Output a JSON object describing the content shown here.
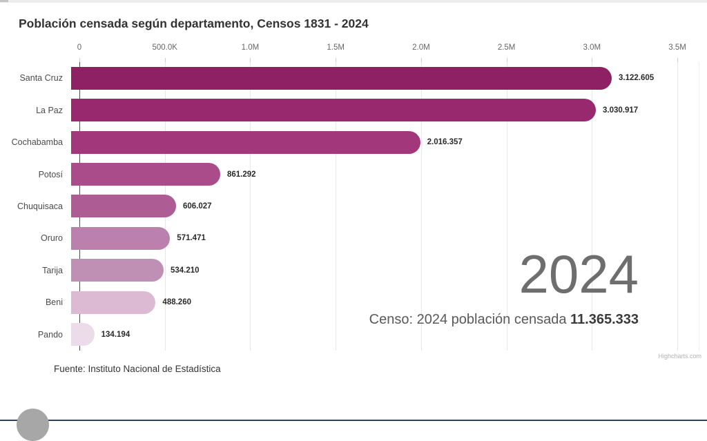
{
  "page": {
    "title": "Población censada según departamento, Censos 1831 - 2024",
    "source_note": "Fuente: Instituto Nacional de Estadística",
    "credits": "Highcharts.com",
    "annotation": {
      "year": "2024",
      "caption_prefix": "Censo: 2024 población censada ",
      "caption_value": "11.365.333"
    }
  },
  "chart_data": {
    "type": "bar",
    "orientation": "horizontal",
    "title": "Población censada según departamento, Censos 1831 - 2024",
    "categories": [
      "Santa Cruz",
      "La Paz",
      "Cochabamba",
      "Potosí",
      "Chuquisaca",
      "Oruro",
      "Tarija",
      "Beni",
      "Pando"
    ],
    "values": [
      3122605,
      3030917,
      2016357,
      861292,
      606027,
      571471,
      534210,
      488260,
      134194
    ],
    "value_labels": [
      "3.122.605",
      "3.030.917",
      "2.016.357",
      "861.292",
      "606.027",
      "571.471",
      "534.210",
      "488.260",
      "134.194"
    ],
    "bar_colors": [
      "#8d2164",
      "#98296f",
      "#a2377b",
      "#aa4c8a",
      "#ae5c94",
      "#bb80ad",
      "#c08fb4",
      "#dcbad4",
      "#ecdcea"
    ],
    "xlabel": "",
    "ylabel": "",
    "axis": {
      "position": "top",
      "grid": true,
      "max": 3625000,
      "ticks": [
        0,
        500000,
        1000000,
        1500000,
        2000000,
        2500000,
        3000000,
        3500000
      ],
      "tick_labels": [
        "0",
        "500.0K",
        "1.0M",
        "1.5M",
        "2.0M",
        "2.5M",
        "3.0M",
        "3.5M"
      ]
    },
    "colors": {
      "grid": "#e7e7e7",
      "axis_line": "#4a4a4a",
      "tick_label": "#666666",
      "category_label": "#4a4a4a",
      "value_label": "#2a2a2a",
      "annotation_year": "#6e6e6e"
    }
  }
}
